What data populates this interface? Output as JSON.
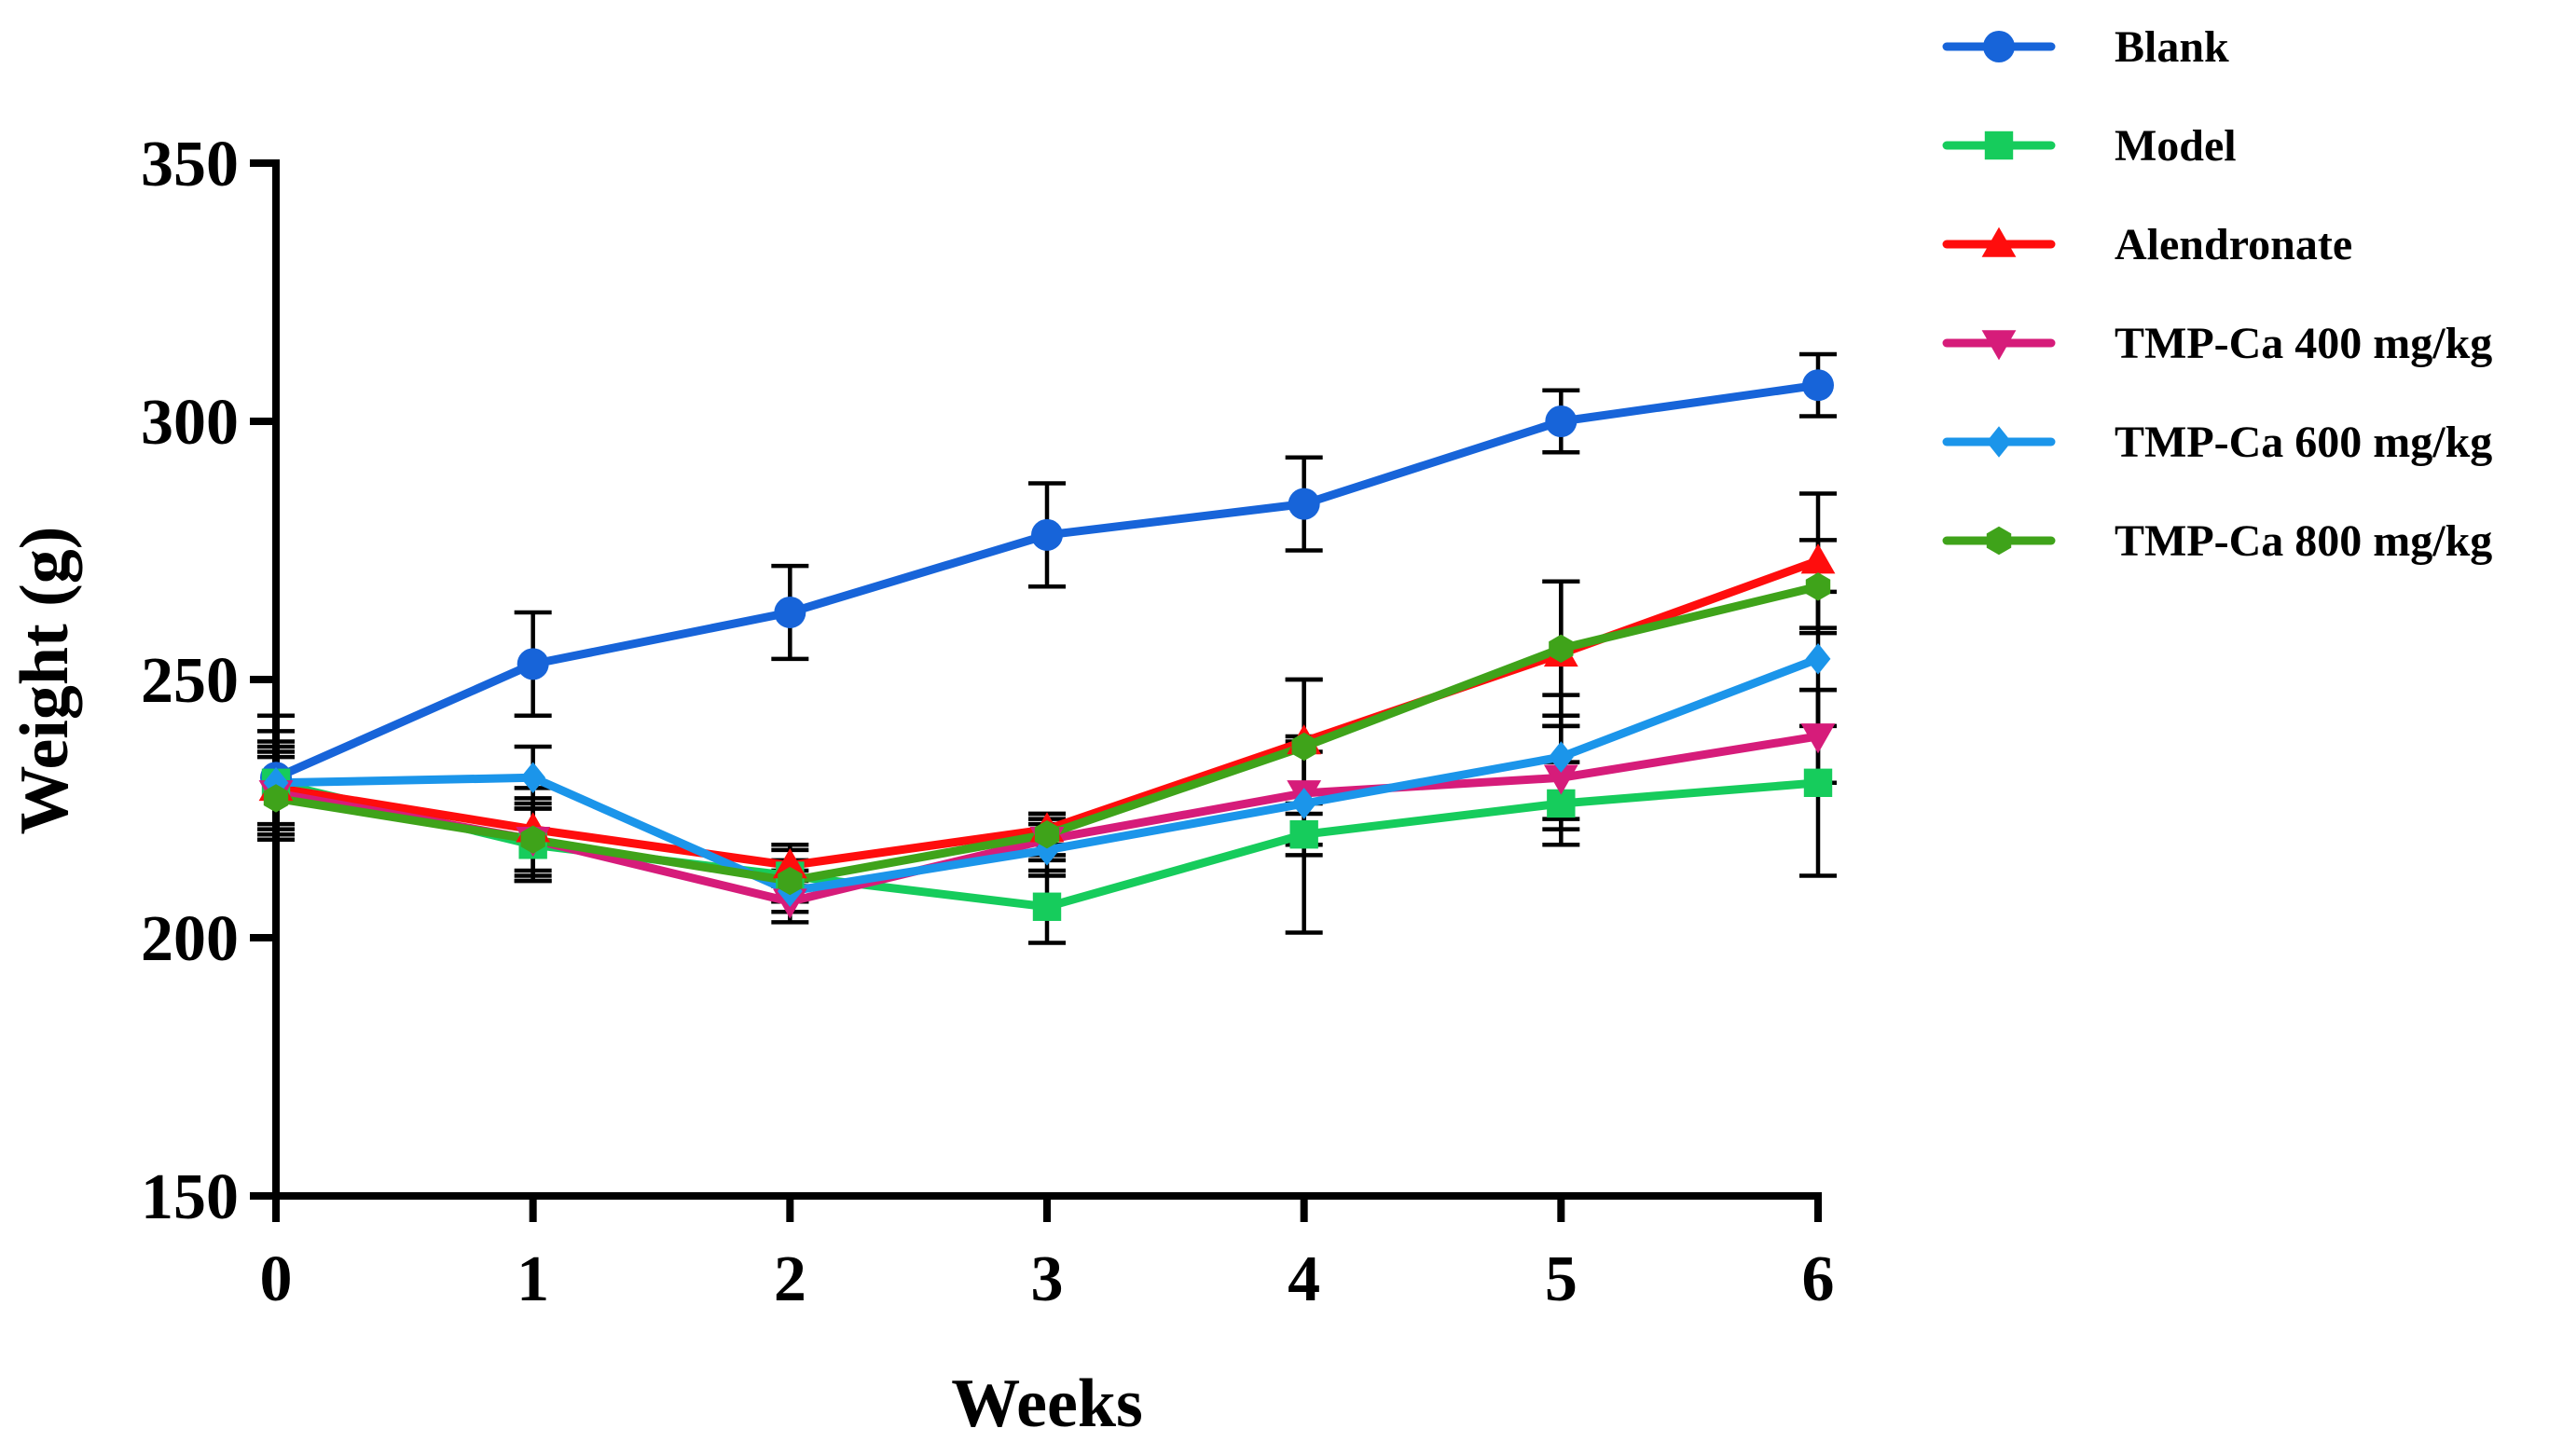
{
  "chart_data": {
    "type": "line",
    "title": "",
    "xlabel": "Weeks",
    "ylabel": "Weight (g)",
    "x": [
      0,
      1,
      2,
      3,
      4,
      5,
      6
    ],
    "xlim": [
      0,
      6
    ],
    "ylim": [
      150,
      350
    ],
    "xticks": [
      "0",
      "1",
      "2",
      "3",
      "4",
      "5",
      "6"
    ],
    "yticks": [
      "150",
      "200",
      "250",
      "300",
      "350"
    ],
    "grid": false,
    "legend_position": "top-right outside",
    "series": [
      {
        "name": "Blank",
        "color": "#1764d9",
        "marker": "circle",
        "values": [
          231,
          253,
          263,
          278,
          284,
          300,
          307
        ],
        "errors": [
          12,
          10,
          9,
          10,
          9,
          6,
          6
        ]
      },
      {
        "name": "Model",
        "color": "#16cc5c",
        "marker": "square",
        "values": [
          230,
          218,
          212,
          206,
          220,
          226,
          230
        ],
        "errors": [
          10,
          7,
          5,
          7,
          19,
          8,
          18
        ]
      },
      {
        "name": "Alendronate",
        "color": "#ff0d0d",
        "marker": "triangle-up",
        "values": [
          229,
          221,
          214,
          221,
          238,
          255,
          273
        ],
        "errors": [
          8,
          8,
          4,
          3,
          12,
          14,
          13
        ]
      },
      {
        "name": "TMP-Ca 400 mg/kg",
        "color": "#d61c7a",
        "marker": "triangle-down",
        "values": [
          228,
          219,
          207,
          219,
          228,
          231,
          239
        ],
        "errors": [
          8,
          7,
          4,
          4,
          10,
          10,
          9
        ]
      },
      {
        "name": "TMP-Ca 600 mg/kg",
        "color": "#1b95ea",
        "marker": "diamond",
        "values": [
          230,
          231,
          209,
          217,
          226,
          235,
          254
        ],
        "errors": [
          8,
          6,
          4,
          5,
          10,
          12,
          13
        ]
      },
      {
        "name": "TMP-Ca 800 mg/kg",
        "color": "#3fa31a",
        "marker": "hexagon",
        "values": [
          227,
          219,
          211,
          220,
          237,
          256,
          268
        ],
        "errors": [
          8,
          8,
          4,
          4,
          13,
          13,
          9
        ]
      }
    ]
  }
}
